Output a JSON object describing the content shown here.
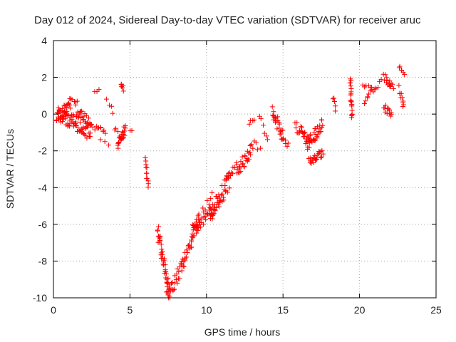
{
  "chart_data": {
    "type": "scatter",
    "title": "Day 012 of 2024, Sidereal Day-to-day VTEC variation (SDTVAR) for receiver aruc",
    "xlabel": "GPS time / hours",
    "ylabel": "SDTVAR / TECUs",
    "xlim": [
      0,
      25
    ],
    "ylim": [
      -10,
      4
    ],
    "xticks": [
      0,
      5,
      10,
      15,
      20,
      25
    ],
    "yticks": [
      -10,
      -8,
      -6,
      -4,
      -2,
      0,
      2,
      4
    ],
    "grid": true,
    "marker": "+",
    "marker_color": "#ff0000",
    "series": [
      {
        "name": "SDTVAR",
        "segments": [
          {
            "x": [
              0.3,
              2.4
            ],
            "y": [
              0.1,
              -1.0
            ],
            "n": 70,
            "spread": 0.45
          },
          {
            "x": [
              0.2,
              1.2
            ],
            "y": [
              -0.3,
              0.6
            ],
            "n": 30,
            "spread": 0.35
          },
          {
            "x": [
              1.4,
              2.5
            ],
            "y": [
              0.6,
              -0.8
            ],
            "n": 25,
            "spread": 0.3
          },
          {
            "x": [
              2.6,
              3.4
            ],
            "y": [
              -0.7,
              -0.9
            ],
            "n": 10,
            "spread": 0.15
          },
          {
            "x": [
              2.7,
              3.0
            ],
            "y": [
              1.2,
              1.4
            ],
            "n": 3,
            "spread": 0.1
          },
          {
            "x": [
              3.1,
              3.6
            ],
            "y": [
              -1.4,
              -1.6
            ],
            "n": 3,
            "spread": 0.1
          },
          {
            "x": [
              3.5,
              3.9
            ],
            "y": [
              0.8,
              0.1
            ],
            "n": 4,
            "spread": 0.2
          },
          {
            "x": [
              4.0,
              4.2
            ],
            "y": [
              -0.8,
              -0.9
            ],
            "n": 3,
            "spread": 0.1
          },
          {
            "x": [
              4.2,
              4.7
            ],
            "y": [
              -1.7,
              -0.8
            ],
            "n": 25,
            "spread": 0.3
          },
          {
            "x": [
              4.4,
              4.6
            ],
            "y": [
              1.6,
              1.4
            ],
            "n": 6,
            "spread": 0.15
          },
          {
            "x": [
              5.0,
              5.1
            ],
            "y": [
              -0.9,
              -1.0
            ],
            "n": 2,
            "spread": 0.1
          },
          {
            "x": [
              6.0,
              6.2
            ],
            "y": [
              -2.5,
              -3.9
            ],
            "n": 12,
            "spread": 0.15
          },
          {
            "x": [
              6.8,
              7.6
            ],
            "y": [
              -6.3,
              -9.8
            ],
            "n": 45,
            "spread": 0.4
          },
          {
            "x": [
              7.4,
              8.5
            ],
            "y": [
              -9.9,
              -8.2
            ],
            "n": 30,
            "spread": 0.4
          },
          {
            "x": [
              8.5,
              9.6
            ],
            "y": [
              -8.0,
              -5.5
            ],
            "n": 30,
            "spread": 0.4
          },
          {
            "x": [
              9.0,
              10.5
            ],
            "y": [
              -6.5,
              -4.6
            ],
            "n": 40,
            "spread": 0.5
          },
          {
            "x": [
              10.2,
              11.5
            ],
            "y": [
              -5.5,
              -3.6
            ],
            "n": 45,
            "spread": 0.5
          },
          {
            "x": [
              11.3,
              12.0
            ],
            "y": [
              -3.5,
              -2.7
            ],
            "n": 10,
            "spread": 0.2
          },
          {
            "x": [
              12.0,
              13.0
            ],
            "y": [
              -3.2,
              -1.8
            ],
            "n": 30,
            "spread": 0.35
          },
          {
            "x": [
              12.8,
              13.1
            ],
            "y": [
              -0.5,
              -0.3
            ],
            "n": 4,
            "spread": 0.1
          },
          {
            "x": [
              13.1,
              13.5
            ],
            "y": [
              -1.6,
              -1.9
            ],
            "n": 4,
            "spread": 0.15
          },
          {
            "x": [
              13.5,
              14.0
            ],
            "y": [
              0.1,
              -1.5
            ],
            "n": 6,
            "spread": 0.25
          },
          {
            "x": [
              14.3,
              15.0
            ],
            "y": [
              0.2,
              -1.2
            ],
            "n": 25,
            "spread": 0.35
          },
          {
            "x": [
              15.0,
              15.3
            ],
            "y": [
              -1.3,
              -1.7
            ],
            "n": 6,
            "spread": 0.15
          },
          {
            "x": [
              15.8,
              16.8
            ],
            "y": [
              -0.6,
              -1.6
            ],
            "n": 25,
            "spread": 0.3
          },
          {
            "x": [
              16.5,
              17.6
            ],
            "y": [
              -1.8,
              -0.5
            ],
            "n": 35,
            "spread": 0.35
          },
          {
            "x": [
              16.7,
              17.6
            ],
            "y": [
              -2.6,
              -2.1
            ],
            "n": 25,
            "spread": 0.2
          },
          {
            "x": [
              18.3,
              18.4
            ],
            "y": [
              0.9,
              0.2
            ],
            "n": 5,
            "spread": 0.15
          },
          {
            "x": [
              19.4,
              19.5
            ],
            "y": [
              1.9,
              -0.2
            ],
            "n": 20,
            "spread": 0.2
          },
          {
            "x": [
              20.2,
              20.8
            ],
            "y": [
              1.6,
              1.5
            ],
            "n": 6,
            "spread": 0.15
          },
          {
            "x": [
              20.3,
              20.5
            ],
            "y": [
              0.5,
              0.8
            ],
            "n": 3,
            "spread": 0.1
          },
          {
            "x": [
              20.5,
              21.4
            ],
            "y": [
              1.1,
              1.7
            ],
            "n": 10,
            "spread": 0.2
          },
          {
            "x": [
              21.6,
              22.2
            ],
            "y": [
              2.0,
              1.5
            ],
            "n": 15,
            "spread": 0.25
          },
          {
            "x": [
              21.6,
              22.1
            ],
            "y": [
              0.4,
              -0.1
            ],
            "n": 12,
            "spread": 0.2
          },
          {
            "x": [
              22.6,
              22.9
            ],
            "y": [
              2.6,
              2.3
            ],
            "n": 6,
            "spread": 0.15
          },
          {
            "x": [
              22.6,
              22.9
            ],
            "y": [
              1.4,
              0.4
            ],
            "n": 10,
            "spread": 0.2
          }
        ]
      }
    ]
  }
}
